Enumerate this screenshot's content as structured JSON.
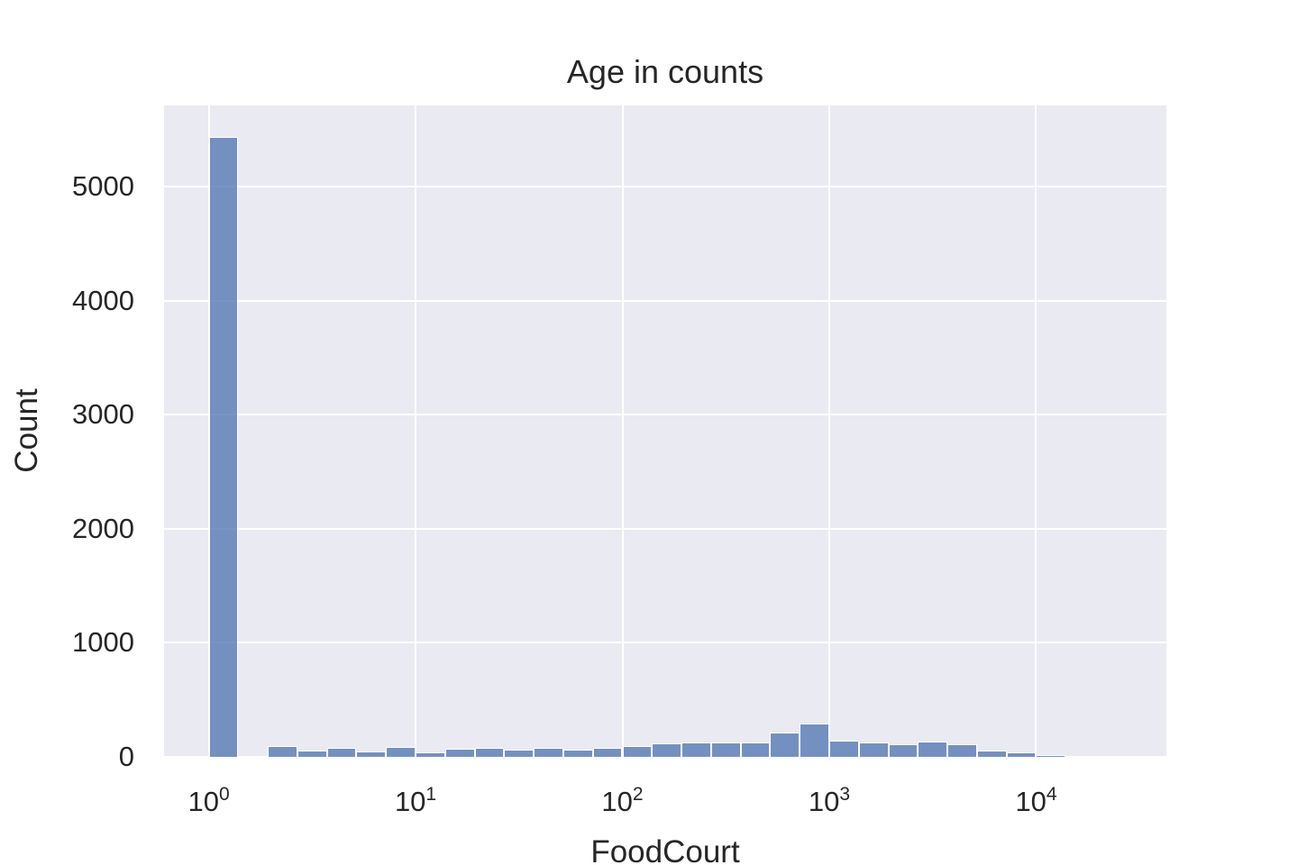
{
  "chart_data": {
    "type": "histogram",
    "title": "Age in counts",
    "xlabel": "FoodCourt",
    "ylabel": "Count",
    "x_scale": "log10",
    "grid": "on",
    "legend": "none",
    "ylim": [
      0,
      5710
    ],
    "xlim_log10": [
      -0.216,
      4.63
    ],
    "y_ticks": [
      {
        "value": 0,
        "label": "0"
      },
      {
        "value": 1000,
        "label": "1000"
      },
      {
        "value": 2000,
        "label": "2000"
      },
      {
        "value": 3000,
        "label": "3000"
      },
      {
        "value": 4000,
        "label": "4000"
      },
      {
        "value": 5000,
        "label": "5000"
      }
    ],
    "x_ticks": [
      {
        "value": 1,
        "base": "10",
        "exp": "0"
      },
      {
        "value": 10,
        "base": "10",
        "exp": "1"
      },
      {
        "value": 100,
        "base": "10",
        "exp": "2"
      },
      {
        "value": 1000,
        "base": "10",
        "exp": "3"
      },
      {
        "value": 10000,
        "base": "10",
        "exp": "4"
      }
    ],
    "bins_per_decade": 7,
    "bin_edges": [
      1,
      1.39,
      1.93,
      2.68,
      3.73,
      5.18,
      7.2,
      10,
      13.9,
      19.3,
      26.8,
      37.3,
      51.8,
      72,
      100,
      139,
      193,
      268,
      373,
      518,
      720,
      1000,
      1389,
      1931,
      2683,
      3728,
      5180,
      7197,
      10000,
      13895,
      19307
    ],
    "counts": [
      5434,
      0,
      95,
      55,
      80,
      50,
      88,
      37,
      75,
      80,
      62,
      82,
      62,
      80,
      95,
      118,
      127,
      127,
      125,
      215,
      295,
      140,
      127,
      113,
      131,
      113,
      54,
      36,
      15,
      5
    ],
    "colors": {
      "figure_background": "#FFFFFF",
      "plot_background": "#EAEAF2",
      "gridline": "#FFFFFF",
      "bar_fill_rgba": "rgba(76,114,176,0.75)",
      "bar_fill_flat": "#7390C0",
      "bar_edge": "#FFFFFF",
      "text": "#262626"
    }
  }
}
